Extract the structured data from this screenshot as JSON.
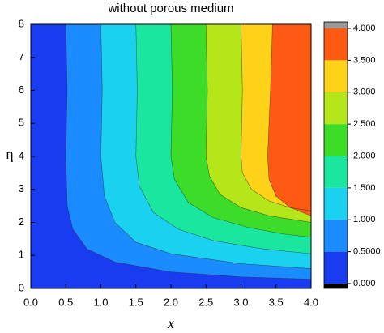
{
  "chart_data": {
    "type": "contour",
    "title": "without porous medium",
    "x_label": "x",
    "y_label": "η",
    "xlim": [
      0,
      4
    ],
    "ylim": [
      0,
      8
    ],
    "xticks": [
      {
        "value": 0,
        "label": "0.0"
      },
      {
        "value": 0.5,
        "label": "0.5"
      },
      {
        "value": 1,
        "label": "1.0"
      },
      {
        "value": 1.5,
        "label": "1.5"
      },
      {
        "value": 2,
        "label": "2.0"
      },
      {
        "value": 2.5,
        "label": "2.5"
      },
      {
        "value": 3,
        "label": "3.0"
      },
      {
        "value": 3.5,
        "label": "3.5"
      },
      {
        "value": 4,
        "label": "4.0"
      }
    ],
    "yticks": [
      0,
      1,
      2,
      3,
      4,
      5,
      6,
      7,
      8
    ],
    "base_color": "#1a3cf0",
    "levels": [
      {
        "level": 0.5,
        "color": "#1a8cff",
        "x": [
          0.5,
          0.52,
          0.5,
          0.52,
          0.6,
          0.8,
          1.2,
          2,
          3,
          4
        ],
        "y": [
          8,
          6,
          4,
          2.5,
          1.8,
          1.2,
          0.8,
          0.5,
          0.35,
          0.28
        ]
      },
      {
        "level": 1.0,
        "color": "#1ad2f0",
        "x": [
          1,
          1.02,
          1,
          1.05,
          1.2,
          1.5,
          2,
          3,
          4
        ],
        "y": [
          8,
          6,
          4,
          2.8,
          2,
          1.4,
          1.05,
          0.75,
          0.6
        ]
      },
      {
        "level": 1.5,
        "color": "#1ae6a0",
        "x": [
          1.5,
          1.52,
          1.5,
          1.55,
          1.75,
          2.1,
          2.6,
          3.3,
          4
        ],
        "y": [
          8,
          6,
          4,
          3.1,
          2.3,
          1.8,
          1.45,
          1.2,
          1.05
        ]
      },
      {
        "level": 2.0,
        "color": "#3cdc28",
        "x": [
          2,
          2.02,
          2,
          2.05,
          2.25,
          2.6,
          3.1,
          3.6,
          4
        ],
        "y": [
          8,
          6,
          4,
          3.3,
          2.6,
          2.15,
          1.85,
          1.65,
          1.55
        ]
      },
      {
        "level": 2.5,
        "color": "#b4e61a",
        "x": [
          2.5,
          2.52,
          2.5,
          2.55,
          2.7,
          3,
          3.4,
          4
        ],
        "y": [
          8,
          6,
          4,
          3.4,
          2.85,
          2.45,
          2.2,
          2
        ]
      },
      {
        "level": 3.0,
        "color": "#ffd21a",
        "x": [
          3,
          3.02,
          3,
          3.02,
          3.15,
          3.4,
          3.7,
          4
        ],
        "y": [
          8,
          6,
          4,
          3.5,
          3,
          2.65,
          2.45,
          2.35
        ]
      },
      {
        "level": 3.5,
        "color": "#ff5a14",
        "x": [
          3.45,
          3.42,
          3.38,
          3.4,
          3.5,
          3.7,
          4
        ],
        "y": [
          8,
          6,
          4,
          3.3,
          2.8,
          2.45,
          2.2
        ]
      }
    ],
    "zlim": [
      0,
      4
    ],
    "zticks": [
      {
        "value": 0,
        "label": "0.000"
      },
      {
        "value": 0.5,
        "label": "0.5000"
      },
      {
        "value": 1,
        "label": "1.000"
      },
      {
        "value": 1.5,
        "label": "1.500"
      },
      {
        "value": 2,
        "label": "2.000"
      },
      {
        "value": 2.5,
        "label": "2.500"
      },
      {
        "value": 3,
        "label": "3.000"
      },
      {
        "value": 3.5,
        "label": "3.500"
      },
      {
        "value": 4,
        "label": "4.000"
      }
    ]
  }
}
